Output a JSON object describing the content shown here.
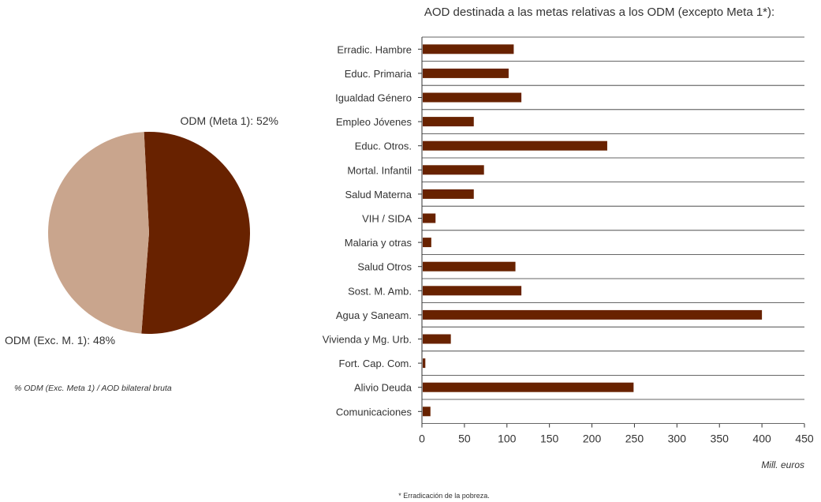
{
  "colors": {
    "dark": "#682200",
    "light": "#c9a58d",
    "grid": "#333333",
    "text": "#333333"
  },
  "chart_data": [
    {
      "type": "pie",
      "title": "",
      "slices": [
        {
          "label": "ODM (Meta 1): 52%",
          "value": 52
        },
        {
          "label": "ODM (Exc. M. 1): 48%",
          "value": 48
        }
      ],
      "caption": "% ODM (Exc. Meta 1) / AOD bilateral bruta"
    },
    {
      "type": "bar",
      "orientation": "horizontal",
      "title": "AOD destinada a las metas relativas a los ODM (excepto Meta 1*):",
      "categories": [
        "Erradic. Hambre",
        "Educ. Primaria",
        "Igualdad Género",
        "Empleo Jóvenes",
        "Educ. Otros.",
        "Mortal. Infantil",
        "Salud Materna",
        "VIH / SIDA",
        "Malaria y otras",
        "Salud Otros",
        "Sost. M. Amb.",
        "Agua y Saneam.",
        "Vivienda y Mg. Urb.",
        "Fort. Cap. Com.",
        "Alivio Deuda",
        "Comunicaciones"
      ],
      "values": [
        108,
        102,
        117,
        61,
        218,
        73,
        61,
        16,
        11,
        110,
        117,
        400,
        34,
        4,
        249,
        10
      ],
      "xlim": [
        0,
        450
      ],
      "xticks": [
        0,
        50,
        100,
        150,
        200,
        250,
        300,
        350,
        400,
        450
      ],
      "xlabel": "Mill. euros",
      "footnote": "* Erradicación de la pobreza."
    }
  ]
}
